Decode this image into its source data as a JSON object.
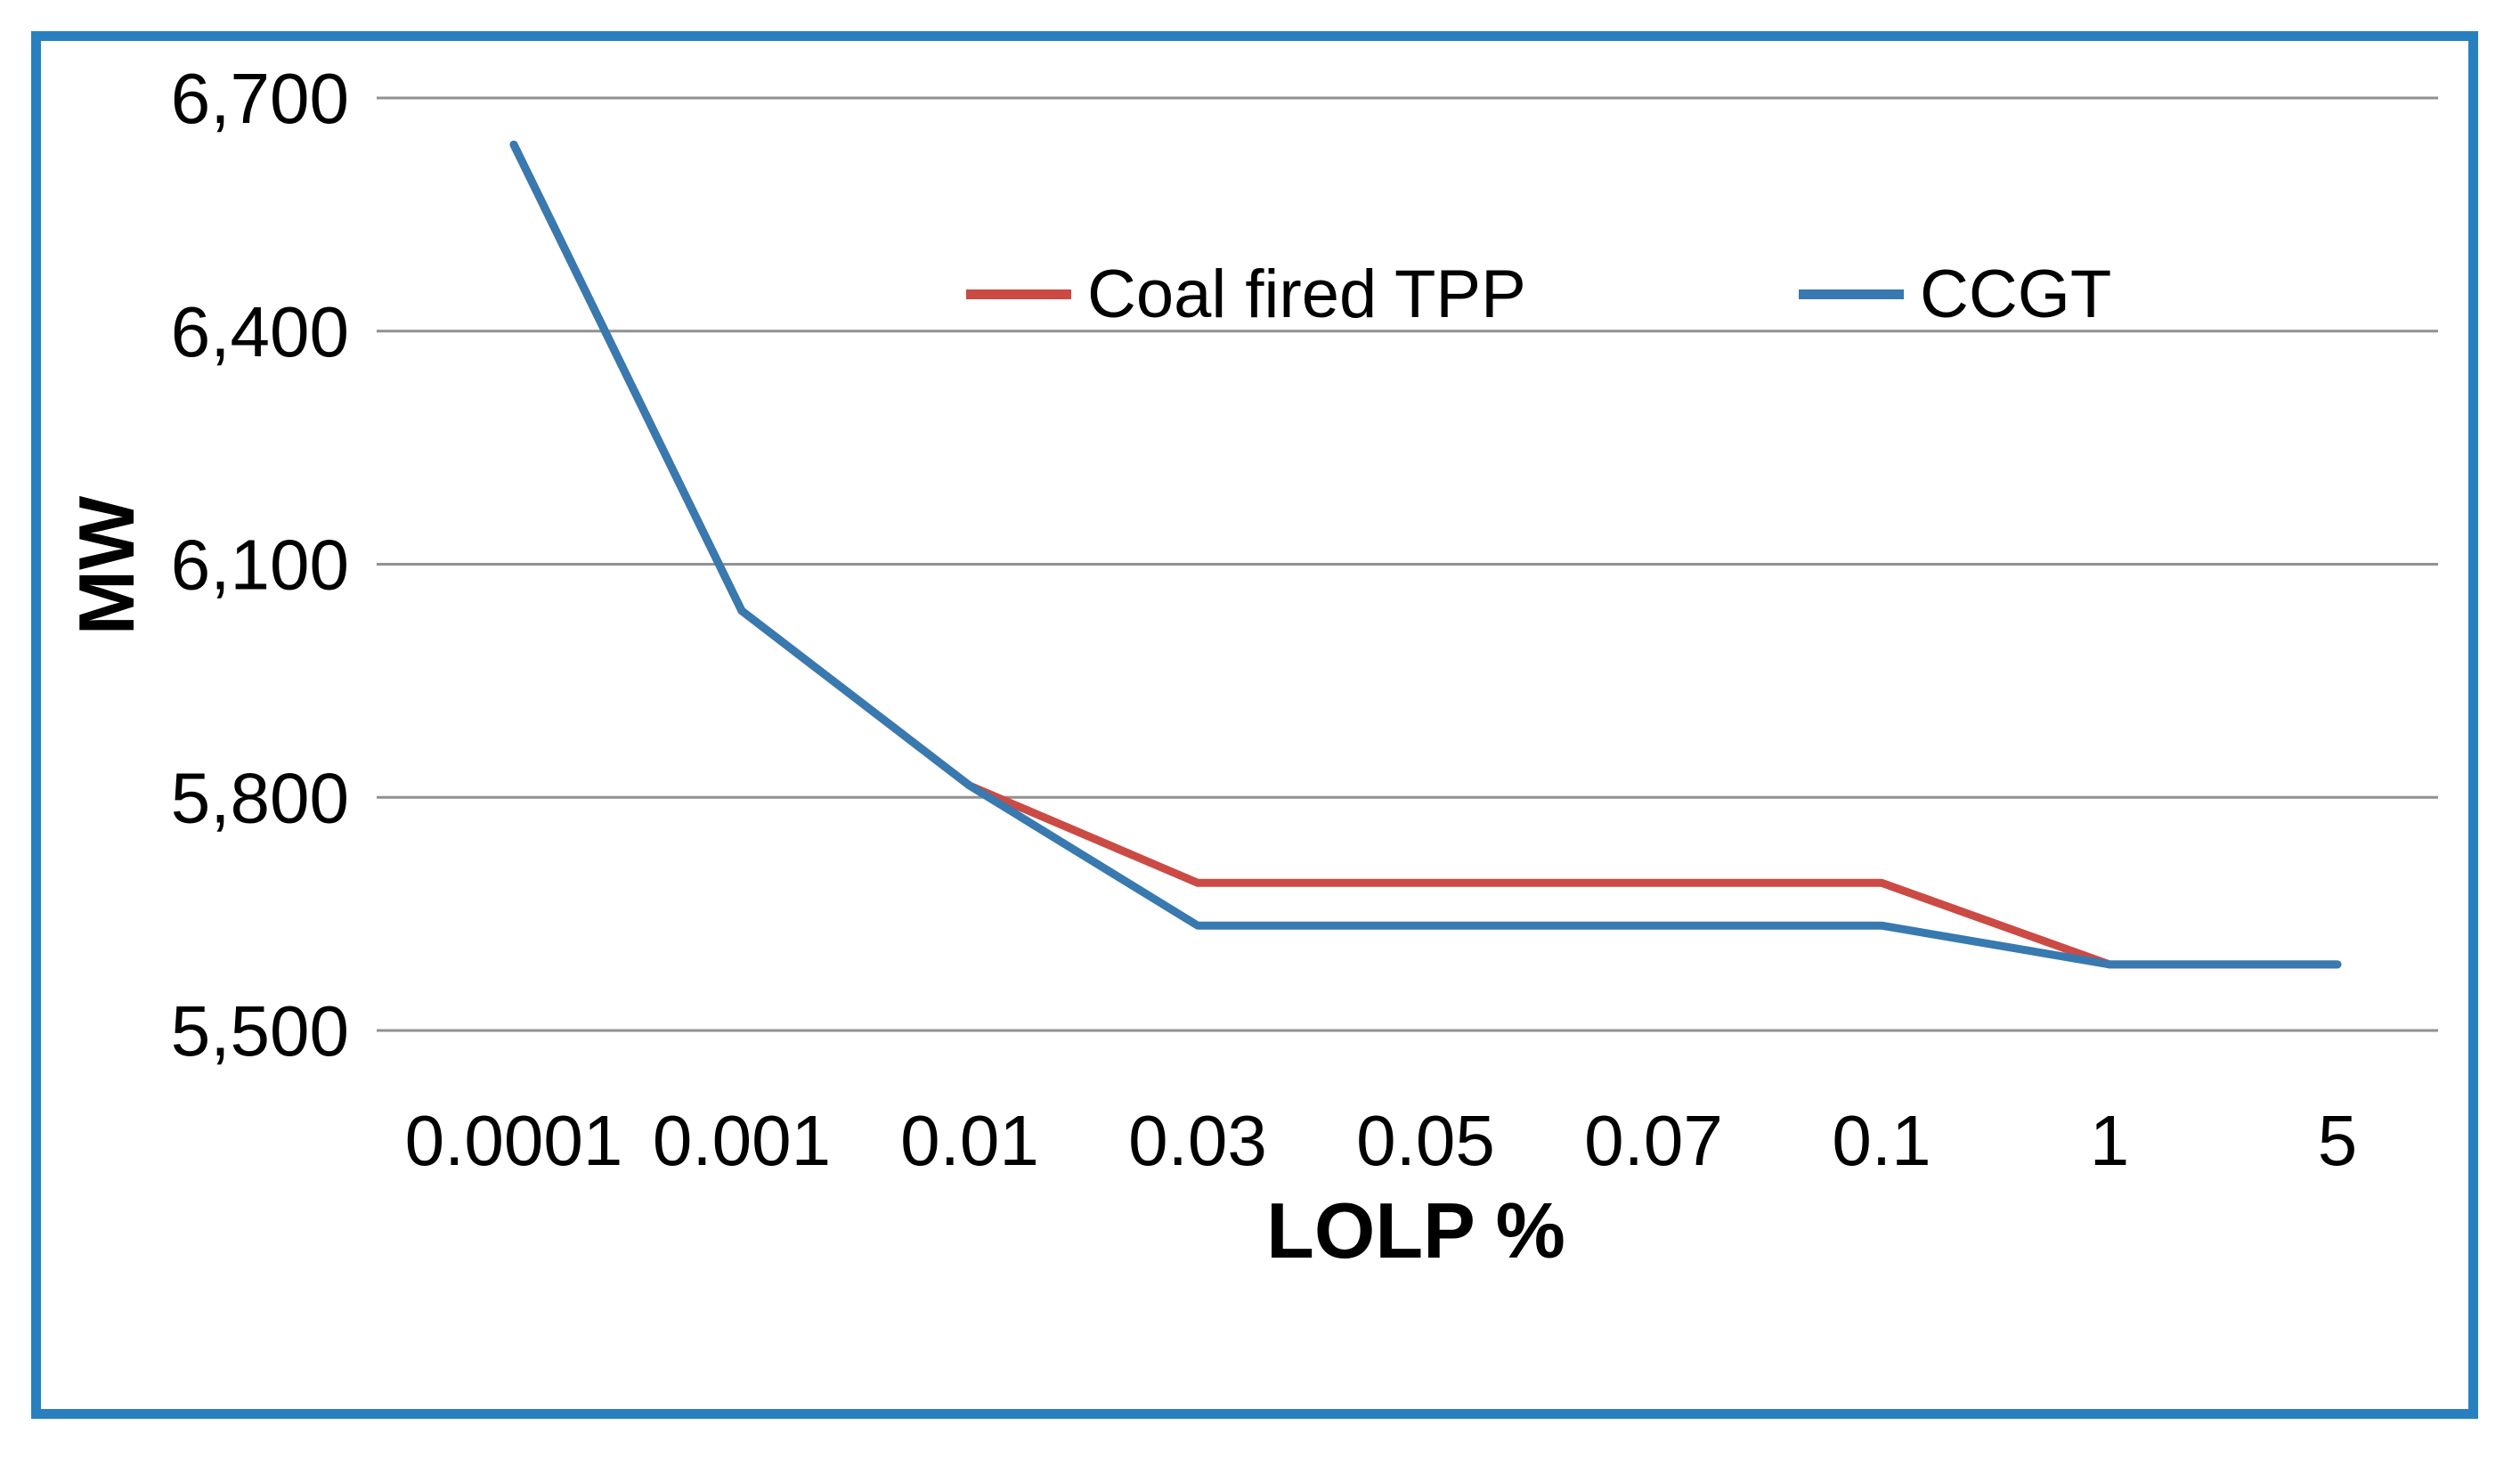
{
  "chart_data": {
    "type": "line",
    "title": "",
    "xlabel": "LOLP %",
    "ylabel": "MW",
    "categories": [
      "0.0001",
      "0.001",
      "0.01",
      "0.03",
      "0.05",
      "0.07",
      "0.1",
      "1",
      "5"
    ],
    "series": [
      {
        "name": "Coal fired TPP",
        "color": "#CB4B44",
        "values": [
          6640,
          6040,
          5815,
          5690,
          5690,
          5690,
          5690,
          5585,
          5585
        ]
      },
      {
        "name": "CCGT",
        "color": "#3879B0",
        "values": [
          6640,
          6040,
          5815,
          5635,
          5635,
          5635,
          5635,
          5585,
          5585
        ]
      }
    ],
    "y_ticks": [
      {
        "value": 6700,
        "label": "6,700"
      },
      {
        "value": 6400,
        "label": "6,400"
      },
      {
        "value": 6100,
        "label": "6,100"
      },
      {
        "value": 5800,
        "label": "5,800"
      },
      {
        "value": 5500,
        "label": "5,500"
      }
    ],
    "ylim": [
      5500,
      6700
    ],
    "grid": true,
    "legend_position": "top-center"
  },
  "style": {
    "frame_border_color": "#2980C0",
    "gridline_color": "#919191",
    "text_color": "#000000",
    "background_color": "#ffffff"
  }
}
